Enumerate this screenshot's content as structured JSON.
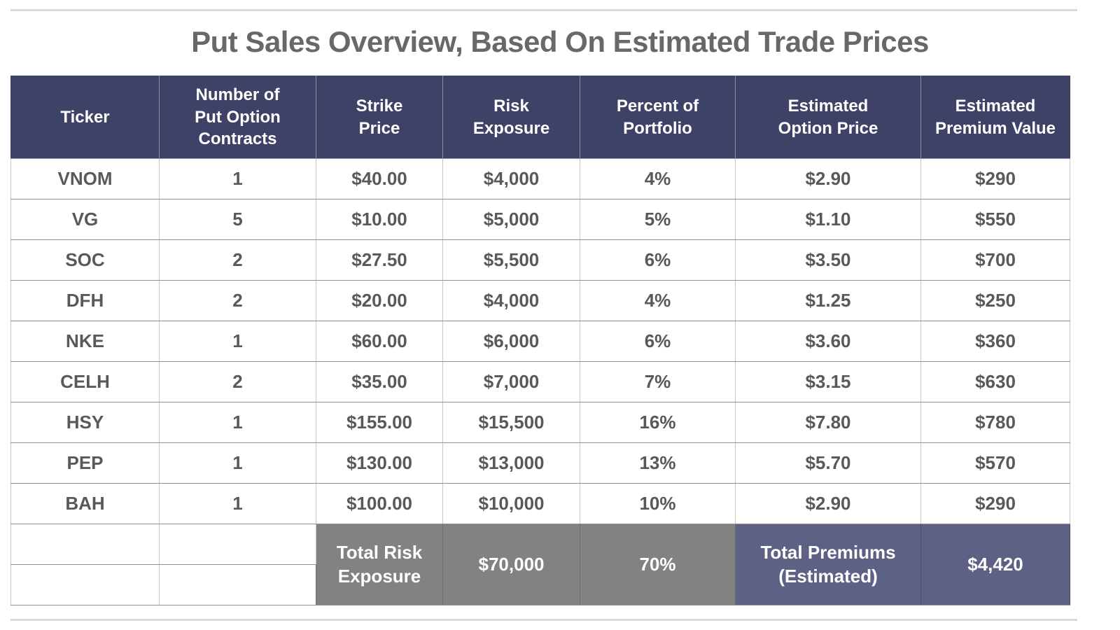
{
  "page": {
    "title": "Put Sales Overview, Based On Estimated Trade Prices"
  },
  "colors": {
    "header_bg": "#3d4266",
    "totals_gray_bg": "#828282",
    "totals_slate_bg": "#5d6284",
    "header_text": "#ffffff",
    "body_text": "#595959",
    "title_text": "#686868",
    "divider_line": "#d9d9d9"
  },
  "chart_data": {
    "type": "table",
    "title": "Put Sales Overview, Based On Estimated Trade Prices",
    "columns": [
      "Ticker",
      "Number of\nPut Option\nContracts",
      "Strike\nPrice",
      "Risk\nExposure",
      "Percent of\nPortfolio",
      "Estimated\nOption Price",
      "Estimated\nPremium Value"
    ],
    "rows": [
      [
        "VNOM",
        "1",
        "$40.00",
        "$4,000",
        "4%",
        "$2.90",
        "$290"
      ],
      [
        "VG",
        "5",
        "$10.00",
        "$5,000",
        "5%",
        "$1.10",
        "$550"
      ],
      [
        "SOC",
        "2",
        "$27.50",
        "$5,500",
        "6%",
        "$3.50",
        "$700"
      ],
      [
        "DFH",
        "2",
        "$20.00",
        "$4,000",
        "4%",
        "$1.25",
        "$250"
      ],
      [
        "NKE",
        "1",
        "$60.00",
        "$6,000",
        "6%",
        "$3.60",
        "$360"
      ],
      [
        "CELH",
        "2",
        "$35.00",
        "$7,000",
        "7%",
        "$3.15",
        "$630"
      ],
      [
        "HSY",
        "1",
        "$155.00",
        "$15,500",
        "16%",
        "$7.80",
        "$780"
      ],
      [
        "PEP",
        "1",
        "$130.00",
        "$13,000",
        "13%",
        "$5.70",
        "$570"
      ],
      [
        "BAH",
        "1",
        "$100.00",
        "$10,000",
        "10%",
        "$2.90",
        "$290"
      ]
    ],
    "totals": {
      "risk_exposure_label": "Total Risk\nExposure",
      "risk_exposure_value": "$70,000",
      "portfolio_percent_value": "70%",
      "premiums_label": "Total Premiums\n(Estimated)",
      "premiums_value": "$4,420"
    }
  }
}
